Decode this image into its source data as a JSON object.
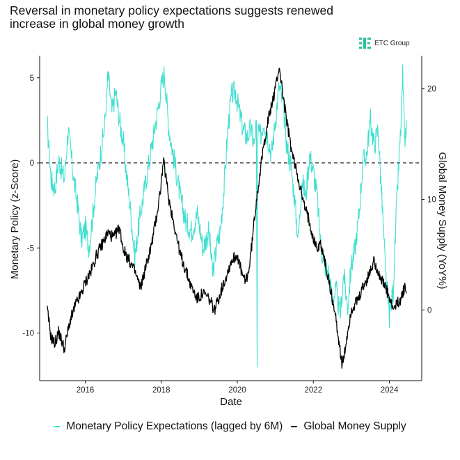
{
  "chart_data": {
    "type": "line",
    "title": "Reversal in monetary policy expectations suggests renewed increase in global money growth",
    "title_lines": [
      "Reversal in monetary policy expectations suggests renewed",
      "increase in global money growth"
    ],
    "xlabel": "Date",
    "ylabel_left": "Monetary Policy (z-Score)",
    "ylabel_right": "Global Money Supply (YoY%)",
    "x_ticks": [
      "2016",
      "2018",
      "2020",
      "2022",
      "2024"
    ],
    "x_tick_values": [
      2016,
      2018,
      2020,
      2022,
      2024
    ],
    "xlim": [
      2014.8,
      2024.85
    ],
    "y_left_ticks": [
      "5",
      "0",
      "-5",
      "-10"
    ],
    "y_left_tick_values": [
      5,
      0,
      -5,
      -10
    ],
    "ylim_left": [
      -12.8,
      6.3
    ],
    "y_right_ticks": [
      "20",
      "10",
      "0"
    ],
    "y_right_tick_values": [
      20,
      10,
      0
    ],
    "ylim_right": [
      -6.4,
      23.0
    ],
    "reference_line": {
      "axis": "left",
      "value": 0,
      "style": "dashed"
    },
    "legend_position": "bottom",
    "series": [
      {
        "name": "Monetary Policy Expectations (lagged by 6M)",
        "axis": "left",
        "color": "#40E0D0",
        "x": [
          2015.0,
          2015.1,
          2015.2,
          2015.3,
          2015.45,
          2015.55,
          2015.7,
          2015.8,
          2015.9,
          2016.0,
          2016.1,
          2016.2,
          2016.3,
          2016.4,
          2016.5,
          2016.6,
          2016.7,
          2016.8,
          2016.9,
          2017.0,
          2017.1,
          2017.2,
          2017.3,
          2017.45,
          2017.6,
          2017.75,
          2017.9,
          2018.0,
          2018.08,
          2018.2,
          2018.35,
          2018.5,
          2018.65,
          2018.8,
          2018.95,
          2019.1,
          2019.25,
          2019.35,
          2019.45,
          2019.55,
          2019.65,
          2019.75,
          2019.85,
          2019.95,
          2020.05,
          2020.15,
          2020.25,
          2020.35,
          2020.45,
          2020.5,
          2020.52,
          2020.53,
          2020.55,
          2020.6,
          2020.7,
          2020.8,
          2020.9,
          2021.0,
          2021.1,
          2021.2,
          2021.3,
          2021.4,
          2021.5,
          2021.6,
          2021.7,
          2021.8,
          2021.9,
          2022.0,
          2022.1,
          2022.2,
          2022.3,
          2022.4,
          2022.5,
          2022.6,
          2022.7,
          2022.8,
          2022.9,
          2023.0,
          2023.1,
          2023.2,
          2023.3,
          2023.4,
          2023.5,
          2023.6,
          2023.7,
          2023.8,
          2023.9,
          2024.0,
          2024.1,
          2024.2,
          2024.3,
          2024.35,
          2024.4,
          2024.45
        ],
        "y": [
          2.2,
          -1.0,
          -1.5,
          0.2,
          -1.0,
          2.0,
          -1.0,
          -2.5,
          -4.5,
          -3.8,
          -5.0,
          -3.0,
          -1.0,
          0.5,
          2.0,
          5.2,
          3.0,
          4.2,
          2.5,
          1.2,
          -1.0,
          -3.0,
          -5.5,
          -3.0,
          -1.0,
          1.0,
          3.0,
          4.5,
          5.3,
          2.0,
          0.0,
          -2.0,
          -3.5,
          -4.0,
          -3.0,
          -5.0,
          -4.0,
          -6.5,
          -5.0,
          -4.0,
          -1.5,
          2.0,
          4.0,
          4.2,
          3.0,
          2.0,
          1.5,
          2.0,
          1.0,
          2.5,
          -12.0,
          0.0,
          2.0,
          1.5,
          2.5,
          1.5,
          0.5,
          2.5,
          4.5,
          3.5,
          1.0,
          0.0,
          -2.0,
          -4.5,
          -1.0,
          -2.0,
          0.5,
          -0.5,
          -2.0,
          -5.0,
          -6.0,
          -6.5,
          -8.0,
          -7.5,
          -9.0,
          -6.5,
          -8.5,
          -6.0,
          -5.0,
          -3.0,
          0.0,
          0.5,
          2.5,
          1.0,
          2.0,
          -2.0,
          -6.5,
          -9.0,
          -7.5,
          -2.0,
          2.0,
          5.2,
          1.0,
          2.5
        ]
      },
      {
        "name": "Global Money Supply",
        "axis": "right",
        "color": "#000000",
        "x": [
          2015.0,
          2015.1,
          2015.2,
          2015.3,
          2015.45,
          2015.6,
          2015.75,
          2015.9,
          2016.0,
          2016.15,
          2016.3,
          2016.45,
          2016.6,
          2016.75,
          2016.9,
          2017.0,
          2017.15,
          2017.3,
          2017.45,
          2017.6,
          2017.75,
          2017.9,
          2018.0,
          2018.05,
          2018.1,
          2018.2,
          2018.35,
          2018.5,
          2018.65,
          2018.8,
          2018.95,
          2019.1,
          2019.25,
          2019.4,
          2019.55,
          2019.7,
          2019.85,
          2020.0,
          2020.1,
          2020.2,
          2020.3,
          2020.4,
          2020.5,
          2020.6,
          2020.7,
          2020.8,
          2020.9,
          2021.0,
          2021.1,
          2021.2,
          2021.3,
          2021.45,
          2021.6,
          2021.75,
          2021.9,
          2022.0,
          2022.1,
          2022.2,
          2022.35,
          2022.5,
          2022.6,
          2022.7,
          2022.75,
          2022.8,
          2022.9,
          2023.0,
          2023.1,
          2023.2,
          2023.3,
          2023.45,
          2023.6,
          2023.75,
          2023.9,
          2024.0,
          2024.1,
          2024.2,
          2024.3,
          2024.4,
          2024.45
        ],
        "y": [
          0.0,
          -2.5,
          -3.0,
          -2.0,
          -3.5,
          -1.0,
          0.5,
          1.5,
          2.5,
          3.5,
          5.0,
          6.0,
          7.0,
          6.5,
          7.5,
          5.5,
          4.5,
          3.5,
          2.0,
          4.0,
          6.0,
          9.0,
          11.5,
          13.5,
          12.5,
          10.0,
          7.5,
          5.0,
          3.5,
          2.0,
          1.0,
          1.5,
          1.0,
          0.0,
          1.5,
          3.0,
          4.5,
          5.0,
          3.5,
          2.5,
          3.5,
          6.5,
          10.0,
          12.5,
          15.0,
          17.0,
          18.5,
          20.0,
          22.0,
          19.5,
          17.0,
          14.0,
          12.0,
          9.5,
          8.0,
          6.5,
          5.5,
          6.0,
          3.5,
          1.0,
          -1.0,
          -3.5,
          -5.0,
          -4.5,
          -2.0,
          0.0,
          0.5,
          1.0,
          2.0,
          3.0,
          4.5,
          3.0,
          2.0,
          1.0,
          0.0,
          0.5,
          1.0,
          2.0,
          1.5
        ]
      }
    ]
  },
  "brand": {
    "name": "ETC Group",
    "color": "#2DBE9E"
  }
}
